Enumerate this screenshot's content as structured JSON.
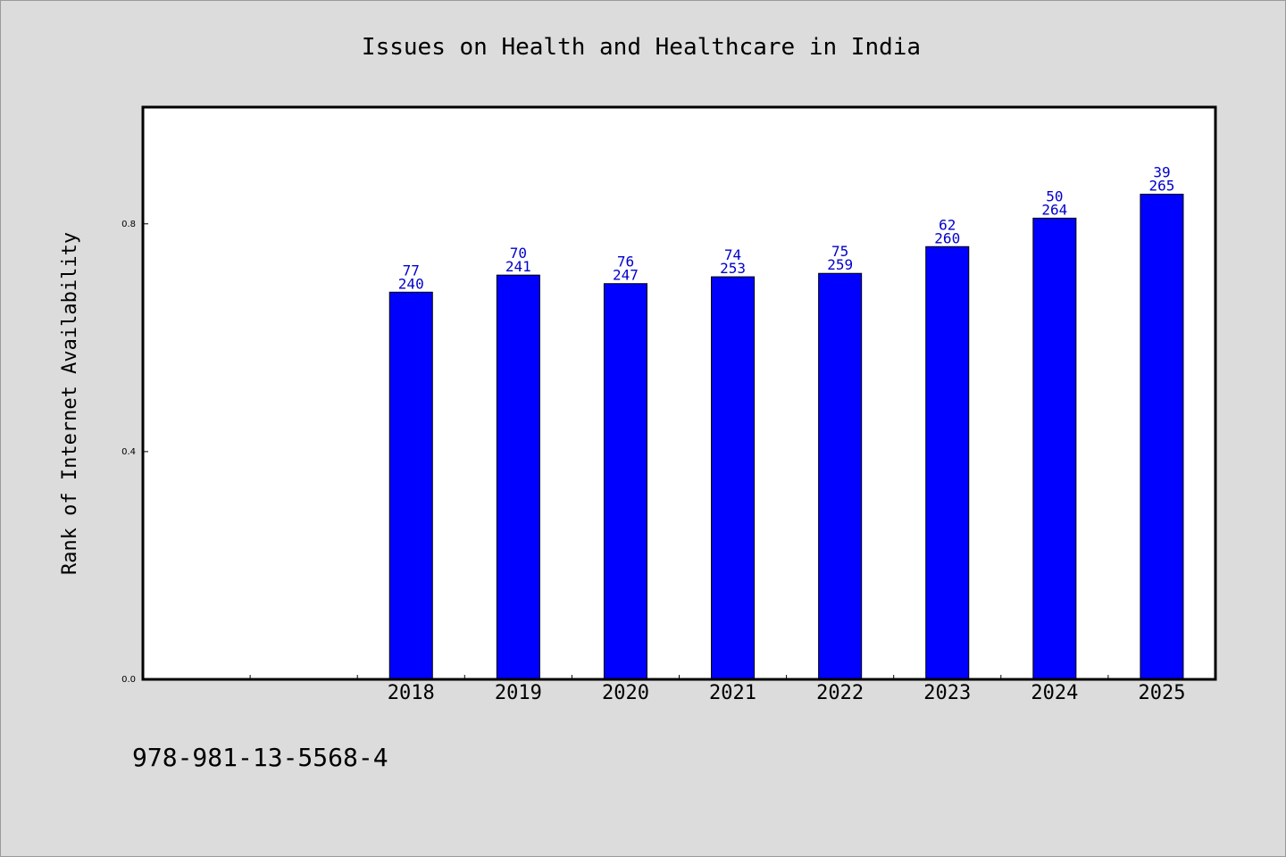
{
  "chart_data": {
    "type": "bar",
    "title": "Issues on Health and Healthcare in India",
    "xlabel": "",
    "ylabel": "Rank of Internet Availability",
    "categories": [
      "",
      "",
      "2018",
      "2019",
      "2020",
      "2021",
      "2022",
      "2023",
      "2024",
      "2025"
    ],
    "values": [
      null,
      null,
      0.68,
      0.71,
      0.695,
      0.707,
      0.713,
      0.76,
      0.81,
      0.852
    ],
    "labels_top": [
      null,
      null,
      "77",
      "70",
      "76",
      "74",
      "75",
      "62",
      "50",
      "39"
    ],
    "labels_bottom": [
      null,
      null,
      "240",
      "241",
      "247",
      "253",
      "259",
      "260",
      "264",
      "265"
    ],
    "ylim": [
      0,
      1.005
    ],
    "yticks": [
      0.0,
      0.4,
      0.8
    ],
    "ytick_labels": [
      "0.0",
      "0.4",
      "0.8"
    ],
    "grid": false,
    "legend": "none",
    "bar_color": "#0000ff",
    "label_color": "#0000cc"
  },
  "footer": {
    "isbn": "978-981-13-5568-4"
  }
}
